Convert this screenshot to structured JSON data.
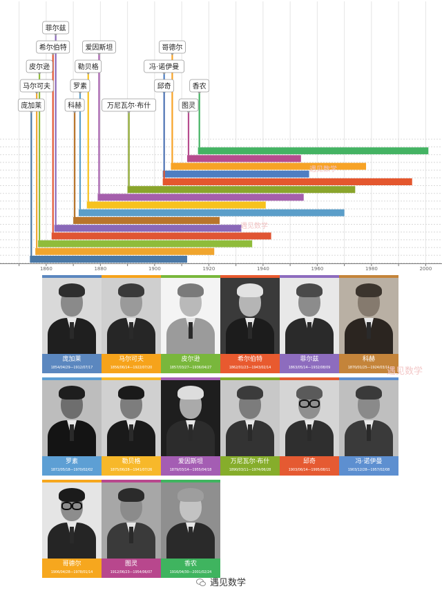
{
  "chart_data": {
    "type": "bar",
    "orientation": "horizontal",
    "title": "",
    "xlabel": "",
    "ylabel": "",
    "xlim": [
      1845,
      2005
    ],
    "xticks": [
      1860,
      1880,
      1900,
      1920,
      1940,
      1960,
      1980,
      2000
    ],
    "grid": true,
    "legend": "none",
    "series": [
      {
        "name": "庞加莱",
        "start": 1854,
        "end": 1912,
        "color": "#4a78a6"
      },
      {
        "name": "马尔可夫",
        "start": 1856,
        "end": 1922,
        "color": "#f0a52e"
      },
      {
        "name": "皮尔逊",
        "start": 1857,
        "end": 1936,
        "color": "#8fbc3a"
      },
      {
        "name": "希尔伯特",
        "start": 1862,
        "end": 1943,
        "color": "#e05533"
      },
      {
        "name": "菲尔兹",
        "start": 1863,
        "end": 1932,
        "color": "#8a68b8"
      },
      {
        "name": "科赫",
        "start": 1870,
        "end": 1924,
        "color": "#b8752c"
      },
      {
        "name": "罗素",
        "start": 1872,
        "end": 1970,
        "color": "#5b9ec9"
      },
      {
        "name": "勒贝格",
        "start": 1875,
        "end": 1941,
        "color": "#f7c21e"
      },
      {
        "name": "爱因斯坦",
        "start": 1879,
        "end": 1955,
        "color": "#a55fac"
      },
      {
        "name": "万尼瓦尔·布什",
        "start": 1890,
        "end": 1974,
        "color": "#8aa52c"
      },
      {
        "name": "邱奇",
        "start": 1903,
        "end": 1995,
        "color": "#e4572e"
      },
      {
        "name": "冯·诺伊曼",
        "start": 1903,
        "end": 1957,
        "color": "#4e7ec2"
      },
      {
        "name": "哥德尔",
        "start": 1906,
        "end": 1978,
        "color": "#f7a326"
      },
      {
        "name": "图灵",
        "start": 1912,
        "end": 1954,
        "color": "#b64c8e"
      },
      {
        "name": "香农",
        "start": 1916,
        "end": 2001,
        "color": "#44b363"
      }
    ]
  },
  "people": [
    {
      "name": "庞加莱",
      "dates": "1854/04/29—1912/07/17",
      "color": "#5b87bf"
    },
    {
      "name": "马尔可夫",
      "dates": "1856/06/14—1922/07/20",
      "color": "#f6a31b"
    },
    {
      "name": "皮尔逊",
      "dates": "1857/03/27—1936/04/27",
      "color": "#79b73c"
    },
    {
      "name": "希尔伯特",
      "dates": "1862/01/23—1943/02/14",
      "color": "#e85a2f"
    },
    {
      "name": "菲尔兹",
      "dates": "1863/05/14—1932/08/09",
      "color": "#8d6cbe"
    },
    {
      "name": "科赫",
      "dates": "1870/01/25—1924/03/11",
      "color": "#c4843a"
    },
    {
      "name": "罗素",
      "dates": "1872/05/18—1970/02/02",
      "color": "#5d9fd4"
    },
    {
      "name": "勒贝格",
      "dates": "1875/06/28—1941/07/26",
      "color": "#f7b82a"
    },
    {
      "name": "爱因斯坦",
      "dates": "1879/03/14—1955/04/18",
      "color": "#a45db3"
    },
    {
      "name": "万尼瓦尔·布什",
      "dates": "1890/03/11—1974/06/28",
      "color": "#86ad2b"
    },
    {
      "name": "邱奇",
      "dates": "1903/06/14—1995/08/11",
      "color": "#e55a32"
    },
    {
      "name": "冯·诺伊曼",
      "dates": "1903/12/28—1957/02/08",
      "color": "#5d8fd0"
    },
    {
      "name": "哥德尔",
      "dates": "1906/04/28—1978/01/14",
      "color": "#f6a71e"
    },
    {
      "name": "图灵",
      "dates": "1912/06/23—1954/06/07",
      "color": "#b8478d"
    },
    {
      "name": "香农",
      "dates": "1916/04/30—2001/02/24",
      "color": "#3fb45f"
    }
  ],
  "footer": {
    "text": "遇见数学",
    "icon": "wechat-icon"
  },
  "watermark": {
    "text": "遇见数学"
  }
}
